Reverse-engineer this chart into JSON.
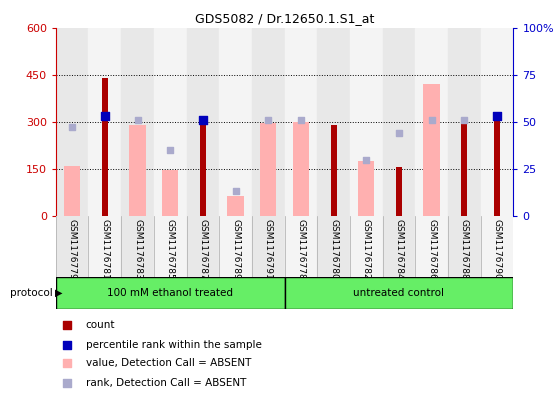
{
  "title": "GDS5082 / Dr.12650.1.S1_at",
  "samples": [
    "GSM1176779",
    "GSM1176781",
    "GSM1176783",
    "GSM1176785",
    "GSM1176787",
    "GSM1176789",
    "GSM1176791",
    "GSM1176778",
    "GSM1176780",
    "GSM1176782",
    "GSM1176784",
    "GSM1176786",
    "GSM1176788",
    "GSM1176790"
  ],
  "group1_label": "100 mM ethanol treated",
  "group2_label": "untreated control",
  "group1_count": 7,
  "group2_count": 7,
  "red_bars": [
    0,
    440,
    0,
    0,
    305,
    0,
    0,
    0,
    290,
    0,
    155,
    0,
    300,
    310
  ],
  "pink_bars": [
    160,
    0,
    290,
    148,
    0,
    65,
    295,
    300,
    0,
    175,
    0,
    420,
    0,
    0
  ],
  "blue_squares_y": [
    null,
    53,
    null,
    null,
    51,
    null,
    null,
    null,
    null,
    null,
    null,
    null,
    null,
    53
  ],
  "light_blue_squares_y": [
    285,
    null,
    305,
    210,
    null,
    80,
    305,
    305,
    null,
    180,
    265,
    305,
    305,
    null
  ],
  "left_yticks": [
    0,
    150,
    300,
    450,
    600
  ],
  "right_yticks": [
    0,
    25,
    50,
    75,
    100
  ],
  "protocol_label": "protocol",
  "red_color": "#AA0000",
  "pink_color": "#FFB0B0",
  "blue_color": "#0000BB",
  "light_blue_color": "#AAAACC",
  "green_color": "#66EE66",
  "left_label_color": "#CC0000",
  "right_label_color": "#0000CC",
  "col_bg_even": "#E8E8E8",
  "col_bg_odd": "#F4F4F4"
}
